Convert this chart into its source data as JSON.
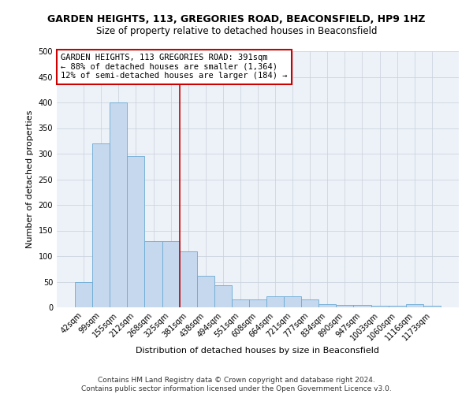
{
  "title": "GARDEN HEIGHTS, 113, GREGORIES ROAD, BEACONSFIELD, HP9 1HZ",
  "subtitle": "Size of property relative to detached houses in Beaconsfield",
  "xlabel": "Distribution of detached houses by size in Beaconsfield",
  "ylabel": "Number of detached properties",
  "bar_color": "#c5d8ed",
  "bar_edge_color": "#6aaad4",
  "background_color": "#edf2f9",
  "grid_color": "#c8cfd8",
  "bin_labels": [
    "42sqm",
    "99sqm",
    "155sqm",
    "212sqm",
    "268sqm",
    "325sqm",
    "381sqm",
    "438sqm",
    "494sqm",
    "551sqm",
    "608sqm",
    "664sqm",
    "721sqm",
    "777sqm",
    "834sqm",
    "890sqm",
    "947sqm",
    "1003sqm",
    "1060sqm",
    "1116sqm",
    "1173sqm"
  ],
  "bin_values": [
    50,
    320,
    400,
    295,
    130,
    130,
    110,
    62,
    43,
    15,
    15,
    22,
    22,
    15,
    6,
    5,
    5,
    3,
    3,
    6,
    3
  ],
  "vline_position": 5.5,
  "vline_color": "#cc0000",
  "annotation_text": "GARDEN HEIGHTS, 113 GREGORIES ROAD: 391sqm\n← 88% of detached houses are smaller (1,364)\n12% of semi-detached houses are larger (184) →",
  "annotation_box_color": "#ffffff",
  "annotation_box_edge_color": "#cc0000",
  "ylim": [
    0,
    500
  ],
  "yticks": [
    0,
    50,
    100,
    150,
    200,
    250,
    300,
    350,
    400,
    450,
    500
  ],
  "footnote": "Contains HM Land Registry data © Crown copyright and database right 2024.\nContains public sector information licensed under the Open Government Licence v3.0.",
  "title_fontsize": 9,
  "subtitle_fontsize": 8.5,
  "xlabel_fontsize": 8,
  "ylabel_fontsize": 8,
  "tick_fontsize": 7,
  "annotation_fontsize": 7.5,
  "footnote_fontsize": 6.5
}
